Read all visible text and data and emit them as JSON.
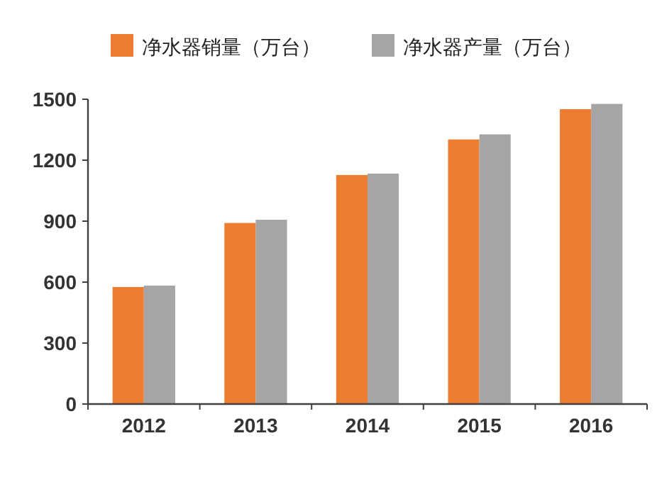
{
  "chart_data": {
    "type": "bar",
    "categories": [
      "2012",
      "2013",
      "2014",
      "2015",
      "2016"
    ],
    "series": [
      {
        "name": "净水器销量（万台）",
        "color": "#ed7d31",
        "values": [
          576,
          891,
          1127,
          1302,
          1451
        ]
      },
      {
        "name": "净水器产量（万台）",
        "color": "#a5a5a5",
        "values": [
          583,
          907,
          1134,
          1327,
          1477
        ]
      }
    ],
    "ylim": [
      0,
      1500
    ],
    "yticks": [
      0,
      300,
      600,
      900,
      1200,
      1500
    ],
    "grid": false,
    "legend": "top"
  }
}
